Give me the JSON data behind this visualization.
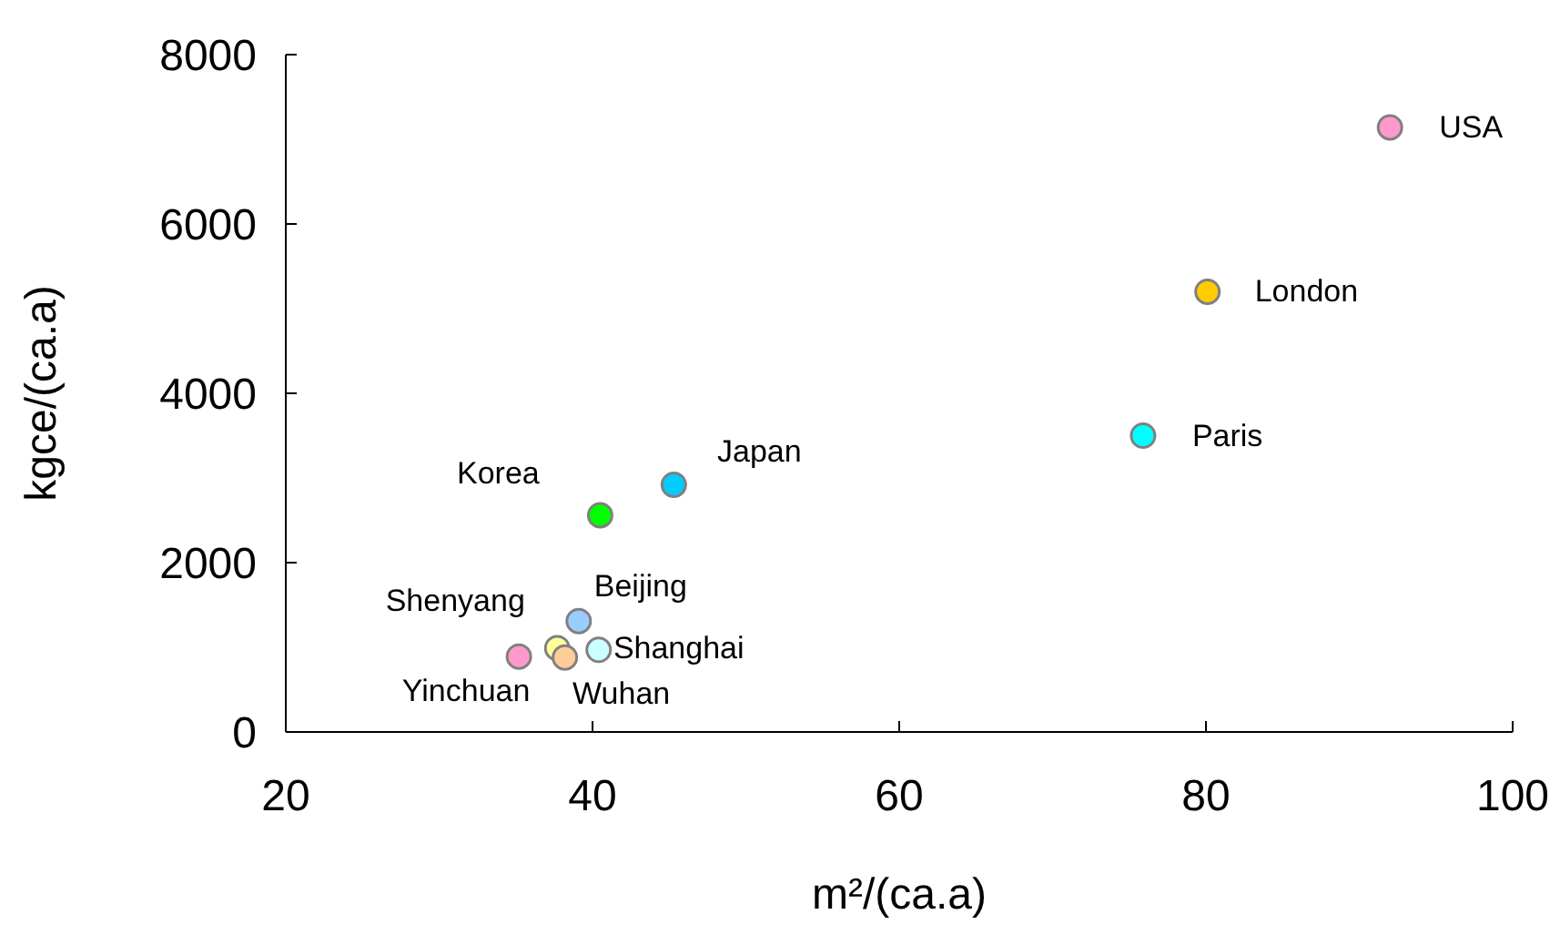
{
  "chart_data": {
    "type": "scatter",
    "xlabel": "m²/(ca.a)",
    "ylabel": "kgce/(ca.a)",
    "xlim": [
      20,
      100
    ],
    "xticks": [
      20,
      40,
      60,
      80,
      100
    ],
    "ylim": [
      0,
      8000
    ],
    "yticks": [
      0,
      2000,
      4000,
      6000,
      8000
    ],
    "marker": "circle",
    "grid": false,
    "legend": false,
    "series": [
      {
        "name": "USA",
        "color": "#ff99cc",
        "x": [
          92.0
        ],
        "values": [
          7140
        ]
      },
      {
        "name": "London",
        "color": "#ffcc00",
        "x": [
          80.1
        ],
        "values": [
          5200
        ]
      },
      {
        "name": "Paris",
        "color": "#00ffff",
        "x": [
          75.9
        ],
        "values": [
          3500
        ]
      },
      {
        "name": "Japan",
        "color": "#00ccff",
        "x": [
          45.3
        ],
        "values": [
          2920
        ]
      },
      {
        "name": "Korea",
        "color": "#00ff00",
        "x": [
          40.5
        ],
        "values": [
          2560
        ]
      },
      {
        "name": "Beijing",
        "color": "#99ccff",
        "x": [
          39.1
        ],
        "values": [
          1310
        ]
      },
      {
        "name": "Shenyang",
        "color": "#ffff99",
        "x": [
          37.7
        ],
        "values": [
          990
        ]
      },
      {
        "name": "Shanghai",
        "color": "#ccffff",
        "x": [
          40.4
        ],
        "values": [
          970
        ]
      },
      {
        "name": "Wuhan",
        "color": "#ffcc99",
        "x": [
          38.2
        ],
        "values": [
          880
        ]
      },
      {
        "name": "Yinchuan",
        "color": "#ff99cc",
        "x": [
          35.2
        ],
        "values": [
          890
        ]
      }
    ]
  }
}
